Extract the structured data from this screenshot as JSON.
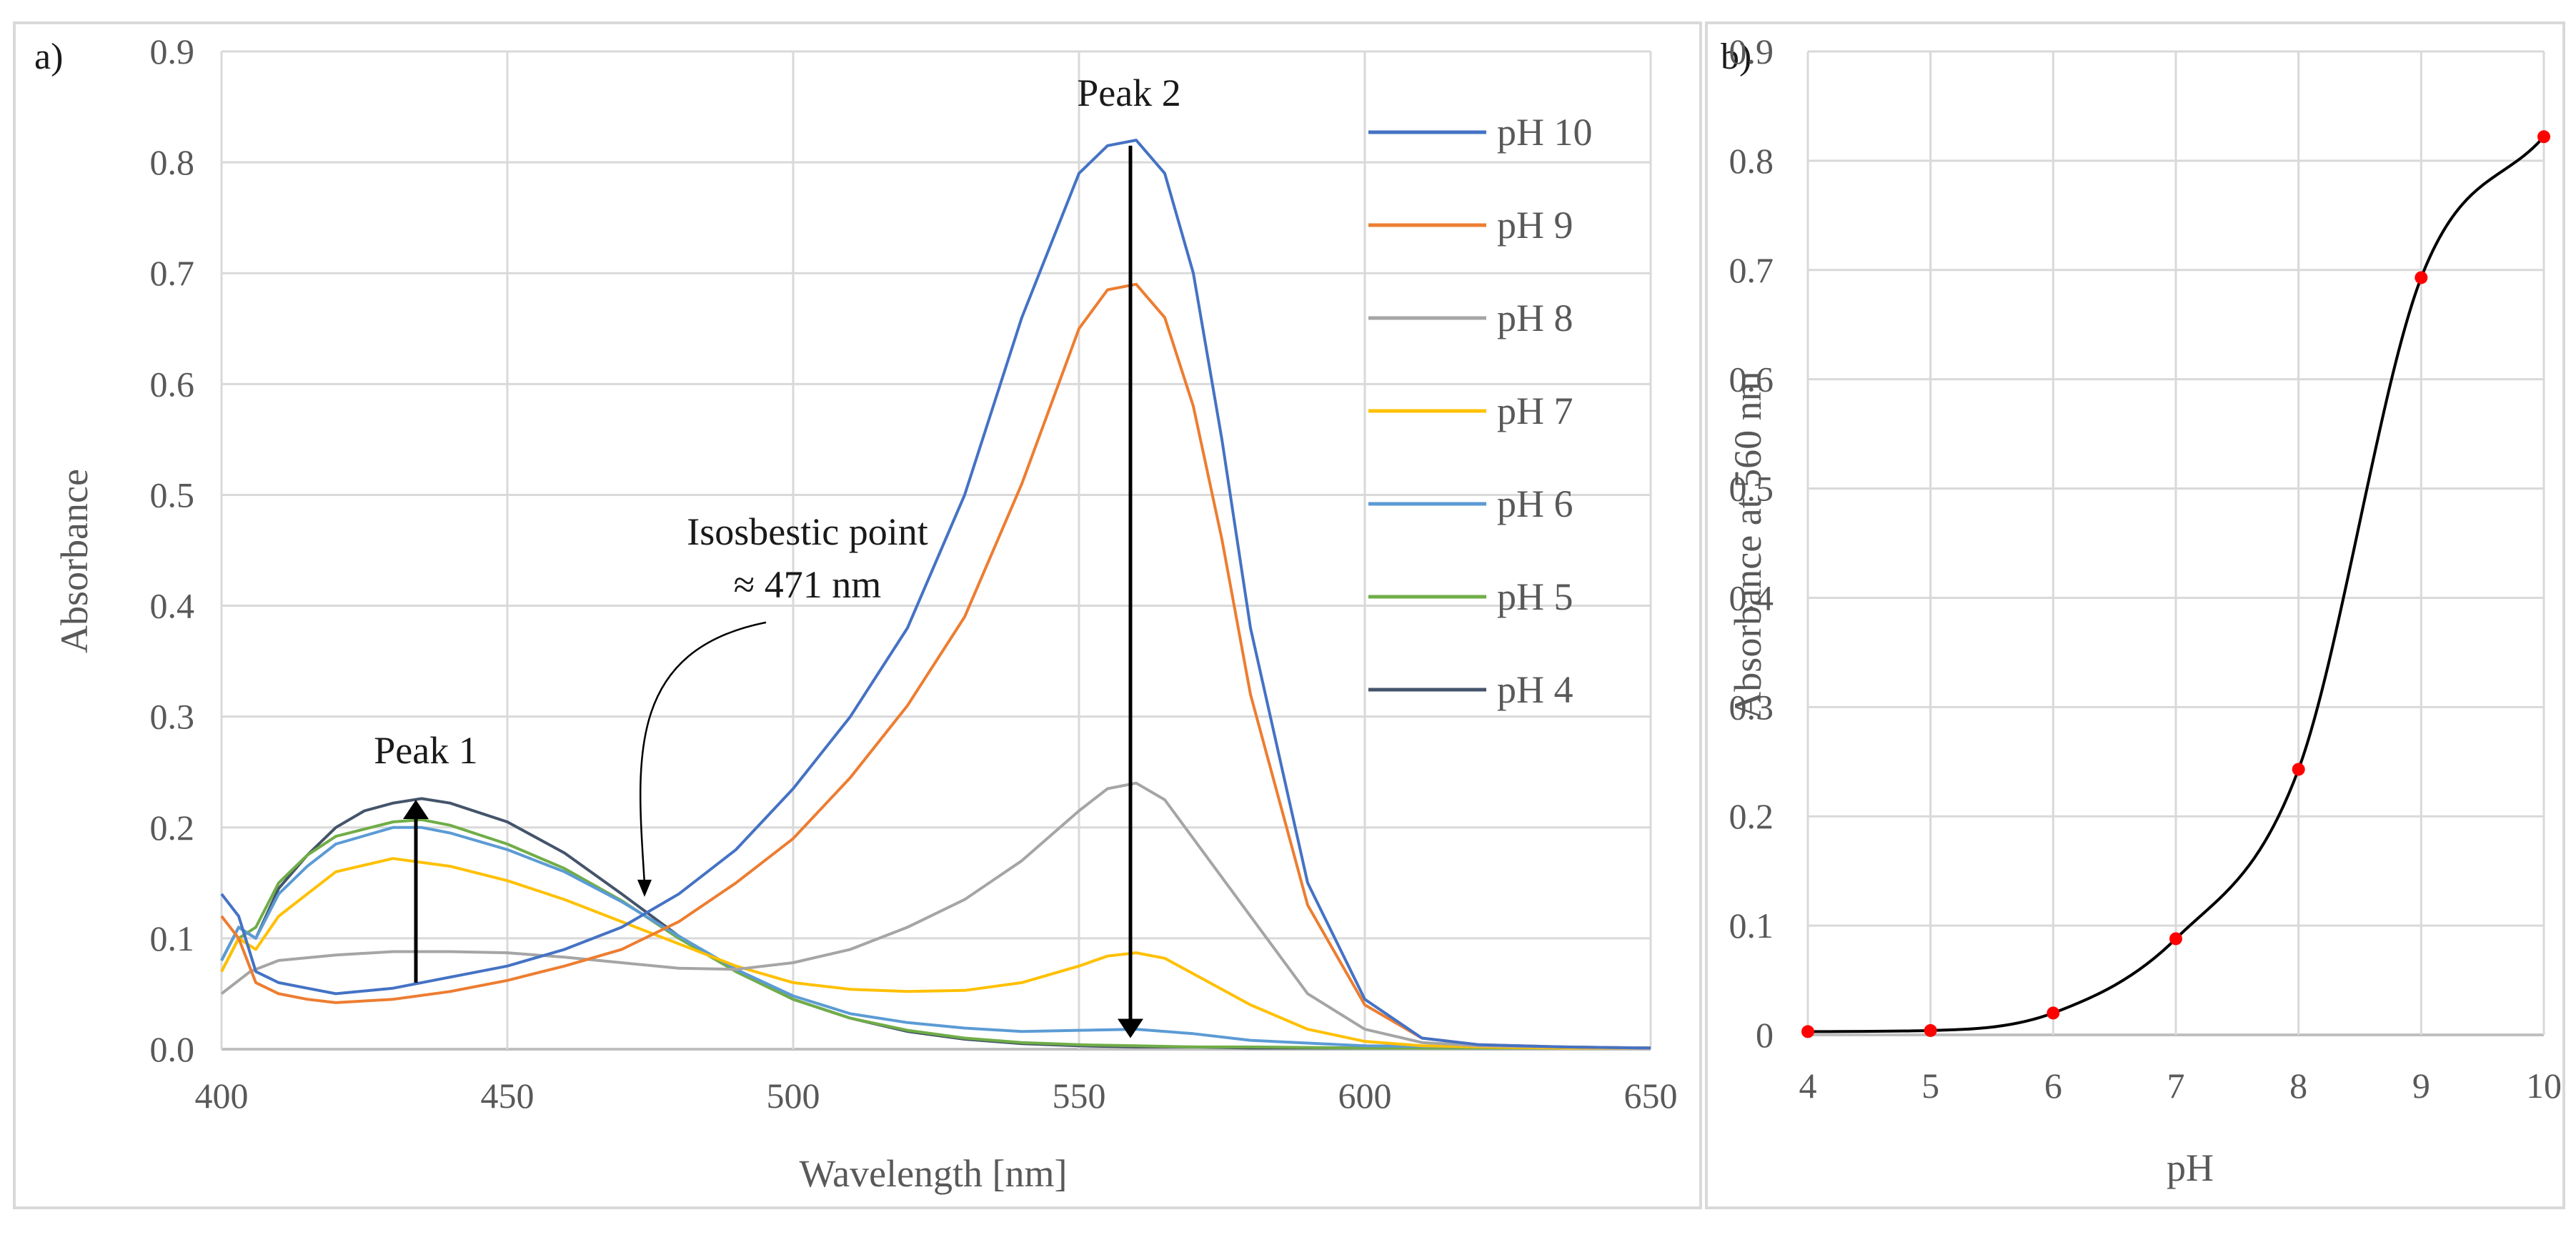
{
  "chart_data": [
    {
      "type": "line",
      "panel_label": "a)",
      "xlabel": "Wavelength [nm]",
      "ylabel": "Absorbance",
      "xlim": [
        400,
        650
      ],
      "ylim": [
        0,
        0.9
      ],
      "xticks": [
        400,
        450,
        500,
        550,
        600,
        650
      ],
      "yticks": [
        0,
        0.1,
        0.2,
        0.3,
        0.4,
        0.5,
        0.6,
        0.7,
        0.8,
        0.9
      ],
      "ytick_labels": [
        "0.0",
        "0.1",
        "0.2",
        "0.3",
        "0.4",
        "0.5",
        "0.6",
        "0.7",
        "0.8",
        "0.9"
      ],
      "grid": true,
      "legend_position": "right",
      "series": [
        {
          "name": "pH 10",
          "color": "#4472C4",
          "x": [
            400,
            403,
            406,
            410,
            415,
            420,
            430,
            440,
            450,
            460,
            470,
            480,
            490,
            500,
            510,
            520,
            530,
            540,
            550,
            555,
            560,
            565,
            570,
            575,
            580,
            590,
            600,
            610,
            620,
            635,
            650
          ],
          "y": [
            0.14,
            0.12,
            0.07,
            0.06,
            0.055,
            0.05,
            0.055,
            0.065,
            0.075,
            0.09,
            0.11,
            0.14,
            0.18,
            0.235,
            0.3,
            0.38,
            0.5,
            0.66,
            0.79,
            0.815,
            0.82,
            0.79,
            0.7,
            0.55,
            0.38,
            0.15,
            0.045,
            0.01,
            0.004,
            0.002,
            0.001
          ]
        },
        {
          "name": "pH 9",
          "color": "#ED7D31",
          "x": [
            400,
            403,
            406,
            410,
            415,
            420,
            430,
            440,
            450,
            460,
            470,
            480,
            490,
            500,
            510,
            520,
            530,
            540,
            550,
            555,
            560,
            565,
            570,
            575,
            580,
            590,
            600,
            610,
            620,
            635,
            650
          ],
          "y": [
            0.12,
            0.1,
            0.06,
            0.05,
            0.045,
            0.042,
            0.045,
            0.052,
            0.062,
            0.075,
            0.09,
            0.115,
            0.15,
            0.19,
            0.245,
            0.31,
            0.39,
            0.51,
            0.65,
            0.685,
            0.69,
            0.66,
            0.58,
            0.46,
            0.32,
            0.13,
            0.04,
            0.01,
            0.004,
            0.002,
            0.001
          ]
        },
        {
          "name": "pH 8",
          "color": "#A5A5A5",
          "x": [
            400,
            405,
            410,
            420,
            430,
            440,
            450,
            460,
            470,
            480,
            490,
            500,
            510,
            520,
            530,
            540,
            550,
            555,
            560,
            565,
            570,
            580,
            590,
            600,
            610,
            620,
            635,
            650
          ],
          "y": [
            0.05,
            0.07,
            0.08,
            0.085,
            0.088,
            0.088,
            0.087,
            0.083,
            0.078,
            0.073,
            0.072,
            0.078,
            0.09,
            0.11,
            0.135,
            0.17,
            0.215,
            0.235,
            0.24,
            0.225,
            0.19,
            0.12,
            0.05,
            0.018,
            0.006,
            0.003,
            0.002,
            0.001
          ]
        },
        {
          "name": "pH 7",
          "color": "#FFC000",
          "x": [
            400,
            403,
            406,
            410,
            415,
            420,
            430,
            440,
            450,
            460,
            470,
            480,
            490,
            500,
            510,
            520,
            530,
            540,
            550,
            555,
            560,
            565,
            570,
            580,
            590,
            600,
            610,
            620,
            635,
            650
          ],
          "y": [
            0.07,
            0.1,
            0.09,
            0.12,
            0.14,
            0.16,
            0.172,
            0.165,
            0.152,
            0.135,
            0.115,
            0.095,
            0.075,
            0.06,
            0.054,
            0.052,
            0.053,
            0.06,
            0.075,
            0.084,
            0.087,
            0.082,
            0.068,
            0.04,
            0.018,
            0.007,
            0.003,
            0.002,
            0.001,
            0.001
          ]
        },
        {
          "name": "pH 6",
          "color": "#5B9BD5",
          "x": [
            400,
            403,
            406,
            410,
            415,
            420,
            430,
            435,
            440,
            450,
            460,
            470,
            480,
            490,
            500,
            510,
            520,
            530,
            540,
            550,
            560,
            570,
            580,
            600,
            620,
            650
          ],
          "y": [
            0.08,
            0.11,
            0.1,
            0.14,
            0.165,
            0.185,
            0.2,
            0.2,
            0.195,
            0.18,
            0.16,
            0.133,
            0.102,
            0.072,
            0.048,
            0.032,
            0.024,
            0.019,
            0.016,
            0.017,
            0.018,
            0.014,
            0.008,
            0.003,
            0.002,
            0.001
          ]
        },
        {
          "name": "pH 5",
          "color": "#70AD47",
          "x": [
            400,
            403,
            406,
            410,
            415,
            420,
            430,
            435,
            440,
            450,
            460,
            470,
            480,
            490,
            500,
            510,
            520,
            530,
            540,
            550,
            560,
            570,
            580,
            600,
            620,
            650
          ],
          "y": [
            0.07,
            0.1,
            0.11,
            0.15,
            0.175,
            0.192,
            0.205,
            0.207,
            0.202,
            0.185,
            0.163,
            0.134,
            0.1,
            0.07,
            0.045,
            0.028,
            0.017,
            0.01,
            0.006,
            0.004,
            0.003,
            0.002,
            0.002,
            0.001,
            0.001,
            0.001
          ]
        },
        {
          "name": "pH 4",
          "color": "#44546A",
          "x": [
            400,
            403,
            406,
            410,
            415,
            420,
            425,
            430,
            435,
            440,
            450,
            460,
            470,
            480,
            490,
            500,
            510,
            520,
            530,
            540,
            550,
            560,
            570,
            580,
            600,
            620,
            650
          ],
          "y": [
            0.08,
            0.11,
            0.1,
            0.145,
            0.175,
            0.2,
            0.215,
            0.222,
            0.226,
            0.222,
            0.205,
            0.177,
            0.14,
            0.102,
            0.07,
            0.045,
            0.028,
            0.016,
            0.009,
            0.005,
            0.003,
            0.002,
            0.002,
            0.001,
            0.001,
            0.001,
            0.001
          ]
        }
      ],
      "annotations": [
        {
          "text": "Peak 1",
          "arrow_x": 434,
          "arrow_from_y": 0.06,
          "arrow_to_y": 0.225
        },
        {
          "text": "Peak 2",
          "arrow_x": 559,
          "arrow_from_y": 0.815,
          "arrow_to_y": 0.01
        },
        {
          "text_line1": "Isosbestic point",
          "text_line2": "≈ 471 nm",
          "point_x": 474,
          "point_y": 0.14
        }
      ]
    },
    {
      "type": "scatter",
      "panel_label": "b)",
      "xlabel": "pH",
      "ylabel": "Absorbance at 560 nm",
      "xlim": [
        4,
        10
      ],
      "ylim": [
        0,
        0.9
      ],
      "xticks": [
        4,
        5,
        6,
        7,
        8,
        9,
        10
      ],
      "yticks": [
        0,
        0.1,
        0.2,
        0.3,
        0.4,
        0.5,
        0.6,
        0.7,
        0.8,
        0.9
      ],
      "ytick_labels": [
        "0",
        "0.1",
        "0.2",
        "0.3",
        "0.4",
        "0.5",
        "0.6",
        "0.7",
        "0.8",
        "0.9"
      ],
      "grid": true,
      "point_color": "#FF0000",
      "curve_color": "#000000",
      "x": [
        4,
        5,
        6,
        7,
        8,
        9,
        10
      ],
      "y": [
        0.003,
        0.004,
        0.02,
        0.088,
        0.243,
        0.693,
        0.822
      ]
    }
  ]
}
